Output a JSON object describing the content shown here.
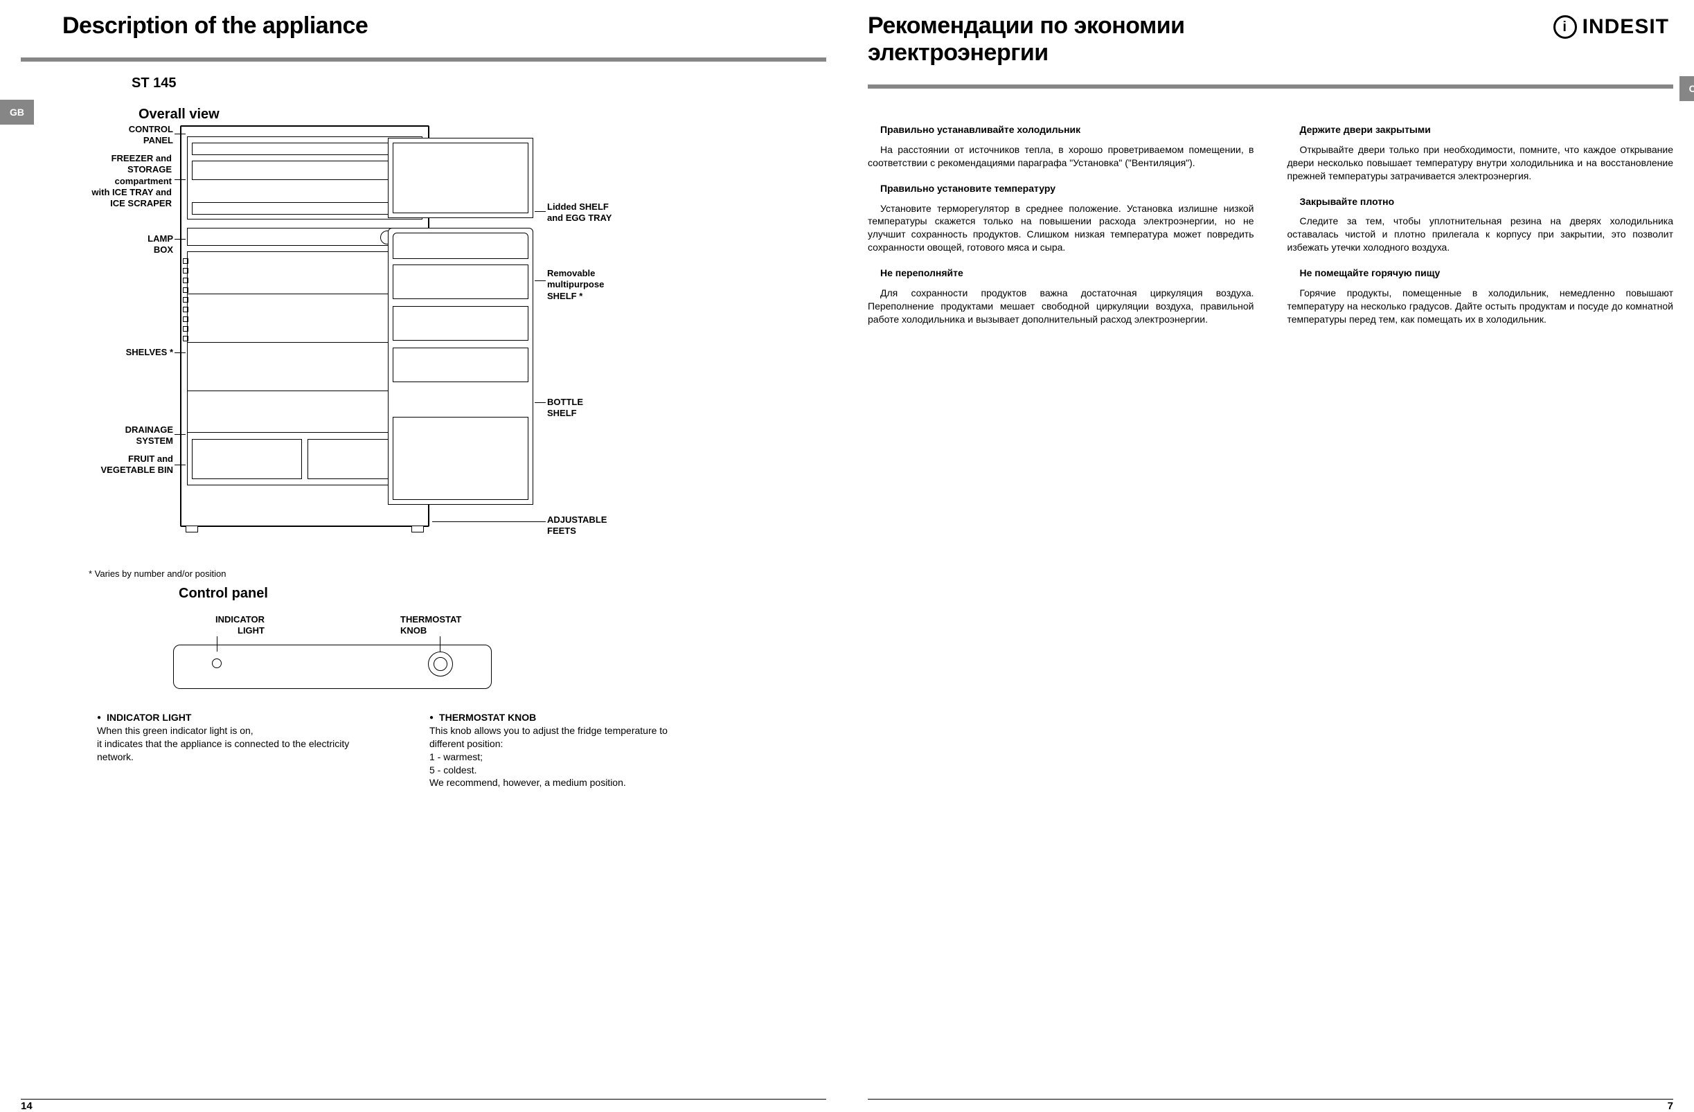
{
  "left": {
    "title": "Description of the appliance",
    "lang_tab": "GB",
    "model": "ST 145",
    "overall_view": "Overall view",
    "callouts_left": [
      {
        "k": "control_panel",
        "lines": [
          "CONTROL",
          "PANEL"
        ]
      },
      {
        "k": "freezer",
        "lines": [
          "FREEZER and",
          "STORAGE",
          "compartment",
          "with ICE TRAY and",
          "ICE SCRAPER"
        ]
      },
      {
        "k": "lamp",
        "lines": [
          "LAMP",
          "BOX"
        ]
      },
      {
        "k": "shelves",
        "lines": [
          "SHELVES *"
        ]
      },
      {
        "k": "drainage",
        "lines": [
          "DRAINAGE",
          "SYSTEM"
        ]
      },
      {
        "k": "bin",
        "lines": [
          "FRUIT and",
          "VEGETABLE BIN"
        ]
      }
    ],
    "callouts_right": [
      {
        "k": "lidded",
        "lines": [
          "Lidded SHELF",
          "and EGG TRAY"
        ]
      },
      {
        "k": "removable",
        "lines": [
          "Removable",
          "multipurpose",
          "SHELF *"
        ]
      },
      {
        "k": "bottle",
        "lines": [
          "BOTTLE",
          "SHELF"
        ]
      },
      {
        "k": "feet",
        "lines": [
          "ADJUSTABLE",
          "FEETS"
        ]
      }
    ],
    "footnote": "* Varies by number and/or position",
    "control_panel_heading": "Control panel",
    "cp_labels": {
      "indicator": "INDICATOR\nLIGHT",
      "thermostat": "THERMOSTAT\nKNOB"
    },
    "cp_notes": {
      "indicator_title": "INDICATOR LIGHT",
      "indicator_body": "When this green indicator light is on,\nit indicates that the appliance is connected to the electricity network.",
      "thermostat_title": "THERMOSTAT KNOB",
      "thermostat_body": "This knob allows you to adjust the fridge temperature to\n different position:\n1 - warmest;\n5 - coldest.\nWe recommend, however, a medium position."
    },
    "page_number": "14"
  },
  "right": {
    "title": "Рекомендации по экономии электроэнергии",
    "lang_tab": "CIS",
    "brand": "INDESIT",
    "col1": [
      {
        "h": "Правильно устанавливайте холодильник",
        "p": "На расстоянии от источников тепла, в хорошо проветриваемом помещении, в соответствии с рекомендациями параграфа \"Установка\" (\"Вентиляция\")."
      },
      {
        "h": "Правильно установите температуру",
        "p": "Установите терморегулятор в среднее положение. Установка излишне низкой температуры скажется только на повышении расхода электроэнергии, но не улучшит сохранность продуктов. Слишком низкая температура может повредить сохранности овощей, готового мяса и сыра."
      },
      {
        "h": "Не переполняйте",
        "p": "Для сохранности продуктов важна достаточная циркуляция воздуха. Переполнение продуктами мешает свободной циркуляции воздуха, правильной работе холодильника и вызывает дополнительный расход электроэнергии."
      }
    ],
    "col2": [
      {
        "h": "Держите двери закрытыми",
        "p": "Открывайте двери только при необходимости, помните, что каждое открывание двери несколько повышает температуру внутри холодильника и на восстановление прежней температуры затрачивается электроэнергия."
      },
      {
        "h": "Закрывайте плотно",
        "p": "Следите за тем, чтобы уплотнительная резина на дверях холодильника оставалась чистой и плотно прилегала к корпусу при закрытии, это позволит избежать утечки холодного воздуха."
      },
      {
        "h": "Не помещайте горячую пищу",
        "p": "Горячие продукты, помещенные в холодильник, немедленно повышают температуру на несколько градусов. Дайте остыть продуктам и посуде до комнатной температуры перед тем, как помещать их в холодильник."
      }
    ],
    "page_number": "7"
  },
  "colors": {
    "grey": "#868686"
  }
}
